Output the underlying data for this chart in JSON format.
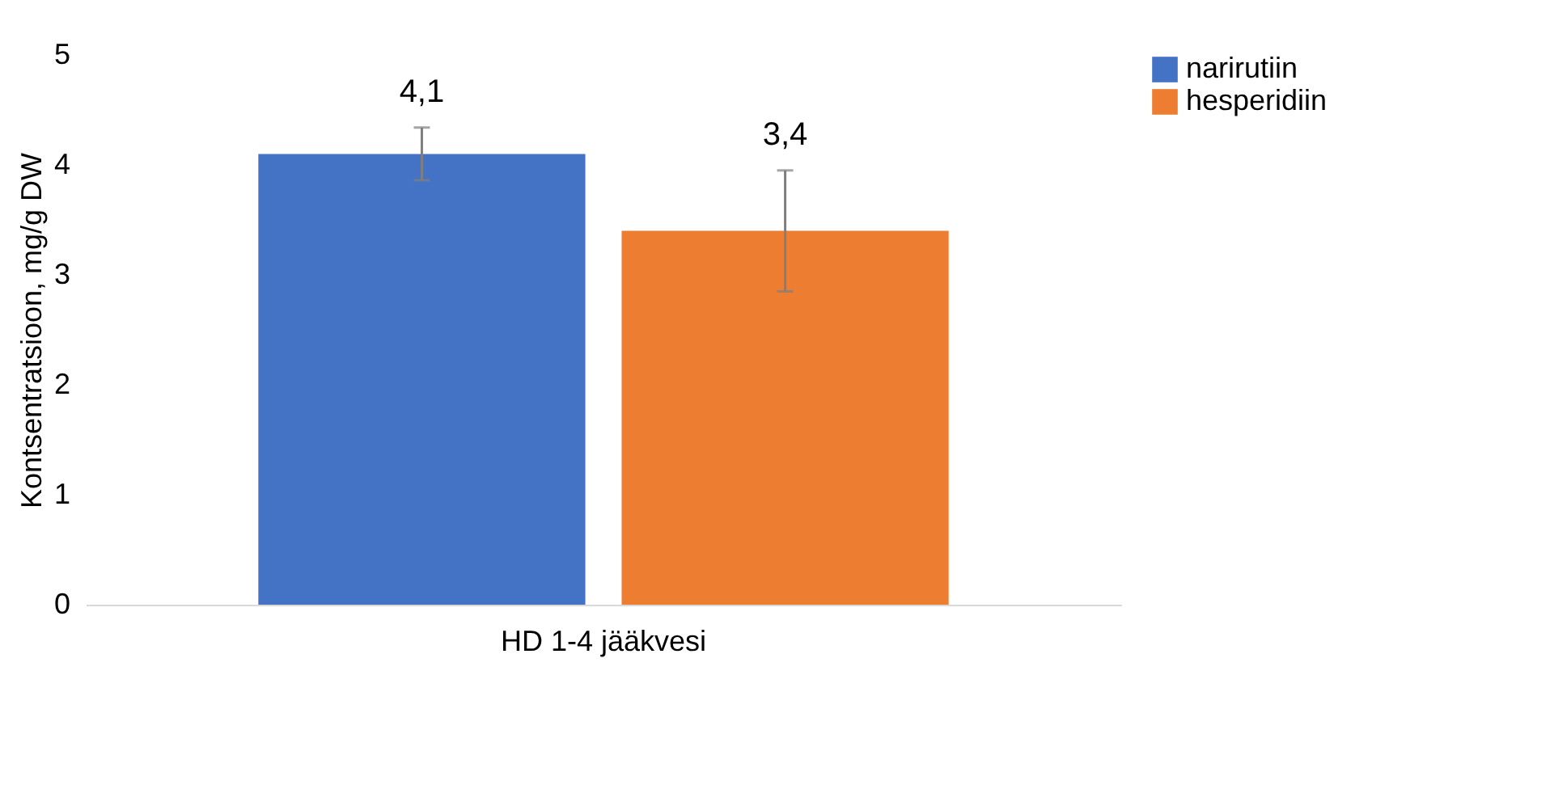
{
  "chart_data": {
    "type": "bar",
    "ylabel": "Kontsentratsioon, mg/g DW",
    "categories": [
      "HD 1-4 jääkvesi"
    ],
    "series": [
      {
        "name": "narirutiin",
        "color": "#4472c4",
        "values": [
          4.1
        ],
        "errors": [
          0.24
        ],
        "value_labels": [
          "4,1"
        ]
      },
      {
        "name": "hesperidiin",
        "color": "#ed7d31",
        "values": [
          3.4
        ],
        "errors": [
          0.55
        ],
        "value_labels": [
          "3,4"
        ]
      }
    ],
    "ylim": [
      0,
      5
    ],
    "yticks": [
      0,
      1,
      2,
      3,
      4,
      5
    ],
    "grid": false,
    "legend": "top right"
  }
}
